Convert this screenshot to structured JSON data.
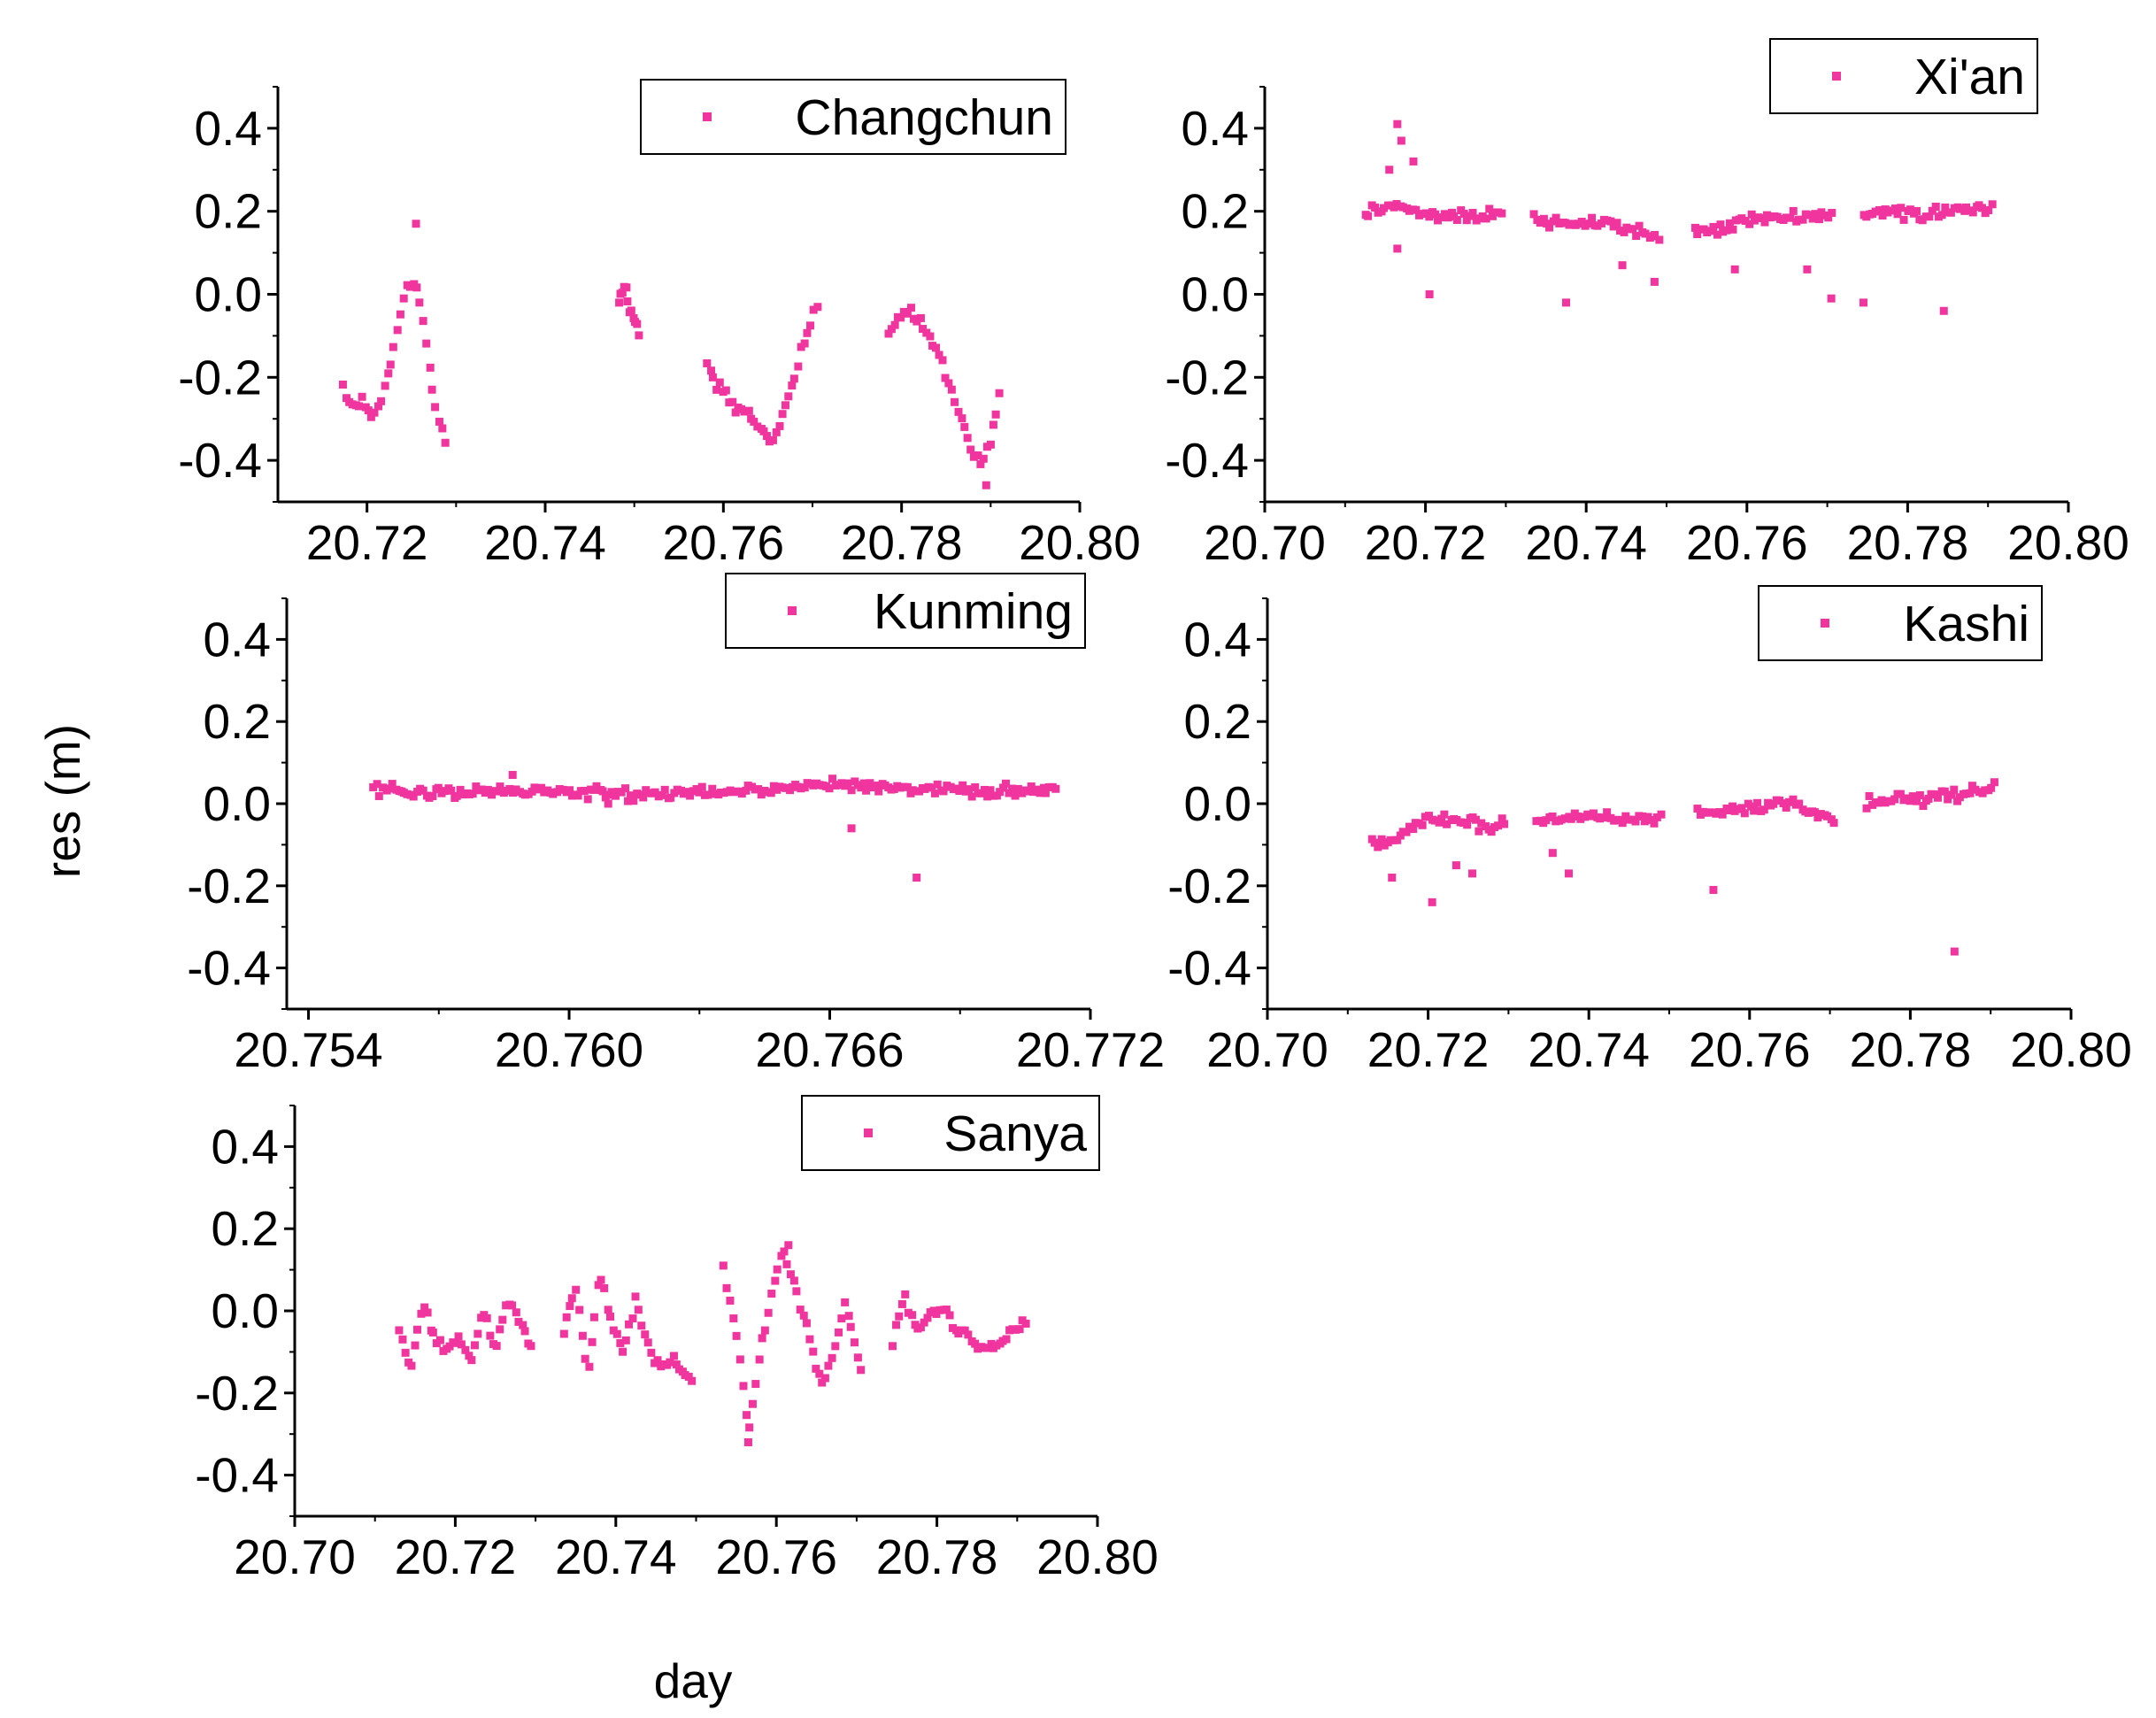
{
  "figure": {
    "ylabel": "res (m)",
    "xlabel": "day",
    "marker_color": "#f0359f"
  },
  "chart_data": [
    {
      "type": "scatter",
      "legend": "Changchun",
      "series": [
        {
          "name": "Changchun",
          "color": "#f0359f"
        }
      ],
      "xlim": [
        20.71,
        20.8
      ],
      "ylim": [
        -0.5,
        0.5
      ],
      "xticks": [
        "20.72",
        "20.74",
        "20.76",
        "20.78",
        "20.80"
      ],
      "yticks": [
        "0.4",
        "0.2",
        "0.0",
        "-0.2",
        "-0.4"
      ],
      "segments": [
        {
          "x": [
            20.7173,
            20.7185,
            20.7195,
            20.7205,
            20.7215,
            20.7225,
            20.7235,
            20.7245,
            20.7252,
            20.7258,
            20.7265,
            20.7272,
            20.728,
            20.7288
          ],
          "y": [
            -0.22,
            -0.28,
            -0.25,
            -0.3,
            -0.26,
            -0.18,
            -0.08,
            0.02,
            0.03,
            0.0,
            -0.1,
            -0.22,
            -0.3,
            -0.37
          ]
        },
        {
          "x": [
            20.7483,
            20.749,
            20.7497,
            20.7505
          ],
          "y": [
            -0.02,
            0.02,
            -0.05,
            -0.09
          ]
        },
        {
          "x": [
            20.7582,
            20.7595,
            20.761,
            20.7625,
            20.764,
            20.7655,
            20.7667,
            20.768,
            20.7692,
            20.7705
          ],
          "y": [
            -0.17,
            -0.22,
            -0.26,
            -0.28,
            -0.32,
            -0.36,
            -0.3,
            -0.2,
            -0.1,
            -0.02
          ]
        },
        {
          "x": [
            20.7785,
            20.7795,
            20.781,
            20.7825,
            20.784,
            20.7855,
            20.787,
            20.788,
            20.789,
            20.79,
            20.791
          ],
          "y": [
            -0.1,
            -0.06,
            -0.04,
            -0.08,
            -0.14,
            -0.22,
            -0.32,
            -0.38,
            -0.42,
            -0.35,
            -0.24
          ]
        }
      ],
      "outliers": {
        "x": [
          20.7255,
          20.7895
        ],
        "y": [
          0.17,
          -0.46
        ]
      }
    },
    {
      "type": "scatter",
      "legend": "Xi'an",
      "series": [
        {
          "name": "Xi'an",
          "color": "#f0359f"
        }
      ],
      "xlim": [
        20.7,
        20.8
      ],
      "ylim": [
        -0.5,
        0.5
      ],
      "xticks": [
        "20.70",
        "20.72",
        "20.74",
        "20.76",
        "20.78",
        "20.80"
      ],
      "yticks": [
        "0.4",
        "0.2",
        "0.0",
        "-0.2",
        "-0.4"
      ],
      "segments": [
        {
          "x": [
            20.7125,
            20.7145,
            20.7165,
            20.718,
            20.72,
            20.7225,
            20.725,
            20.7275,
            20.7295
          ],
          "y": [
            0.2,
            0.2,
            0.22,
            0.2,
            0.19,
            0.19,
            0.19,
            0.19,
            0.19
          ]
        },
        {
          "x": [
            20.7335,
            20.737,
            20.741,
            20.745,
            20.749
          ],
          "y": [
            0.18,
            0.17,
            0.17,
            0.16,
            0.14
          ]
        },
        {
          "x": [
            20.7535,
            20.757,
            20.761,
            20.765,
            20.7705
          ],
          "y": [
            0.15,
            0.16,
            0.18,
            0.19,
            0.19
          ]
        },
        {
          "x": [
            20.7745,
            20.778,
            20.782,
            20.786,
            20.7905
          ],
          "y": [
            0.19,
            0.2,
            0.19,
            0.2,
            0.21
          ]
        }
      ],
      "outliers": {
        "x": [
          20.7165,
          20.717,
          20.7155,
          20.7185,
          20.7165,
          20.7205,
          20.7375,
          20.7445,
          20.7485,
          20.7585,
          20.7675,
          20.7705,
          20.7745,
          20.7845
        ],
        "y": [
          0.41,
          0.37,
          0.3,
          0.32,
          0.11,
          0.0,
          -0.02,
          0.07,
          0.03,
          0.06,
          0.06,
          -0.01,
          -0.02,
          -0.04
        ]
      }
    },
    {
      "type": "scatter",
      "legend": "Kunming",
      "series": [
        {
          "name": "Kunming",
          "color": "#f0359f"
        }
      ],
      "xlim": [
        20.7535,
        20.772
      ],
      "ylim": [
        -0.5,
        0.5
      ],
      "xticks": [
        "20.754",
        "20.760",
        "20.766",
        "20.772"
      ],
      "yticks": [
        "0.4",
        "0.2",
        "0.0",
        "-0.2",
        "-0.4"
      ],
      "segments": [
        {
          "x": [
            20.7555,
            20.757,
            20.7585,
            20.76,
            20.7615,
            20.763,
            20.7645,
            20.766,
            20.7675,
            20.769,
            20.7712
          ],
          "y": [
            0.03,
            0.03,
            0.03,
            0.03,
            0.02,
            0.03,
            0.03,
            0.05,
            0.04,
            0.03,
            0.03
          ]
        }
      ],
      "outliers": {
        "x": [
          20.7587,
          20.7609,
          20.7665,
          20.768
        ],
        "y": [
          0.07,
          0.0,
          -0.06,
          -0.18
        ]
      }
    },
    {
      "type": "scatter",
      "legend": "Kashi",
      "series": [
        {
          "name": "Kashi",
          "color": "#f0359f"
        }
      ],
      "xlim": [
        20.7,
        20.8
      ],
      "ylim": [
        -0.5,
        0.5
      ],
      "xticks": [
        "20.70",
        "20.72",
        "20.74",
        "20.76",
        "20.78",
        "20.80"
      ],
      "yticks": [
        "0.4",
        "0.2",
        "0.0",
        "-0.2",
        "-0.4"
      ],
      "segments": [
        {
          "x": [
            20.713,
            20.716,
            20.72,
            20.724,
            20.728,
            20.7295
          ],
          "y": [
            -0.1,
            -0.09,
            -0.04,
            -0.04,
            -0.06,
            -0.05
          ]
        },
        {
          "x": [
            20.7335,
            20.737,
            20.741,
            20.745,
            20.749
          ],
          "y": [
            -0.04,
            -0.04,
            -0.03,
            -0.04,
            -0.04
          ]
        },
        {
          "x": [
            20.7535,
            20.757,
            20.761,
            20.765,
            20.7705
          ],
          "y": [
            -0.02,
            -0.02,
            -0.01,
            0.0,
            -0.04
          ]
        },
        {
          "x": [
            20.7745,
            20.778,
            20.782,
            20.786,
            20.7905
          ],
          "y": [
            0.0,
            0.01,
            0.01,
            0.02,
            0.04
          ]
        }
      ],
      "outliers": {
        "x": [
          20.7155,
          20.7205,
          20.7235,
          20.7255,
          20.7355,
          20.7375,
          20.7555,
          20.7855
        ],
        "y": [
          -0.18,
          -0.24,
          -0.15,
          -0.17,
          -0.12,
          -0.17,
          -0.21,
          -0.36
        ]
      }
    },
    {
      "type": "scatter",
      "legend": "Sanya",
      "series": [
        {
          "name": "Sanya",
          "color": "#f0359f"
        }
      ],
      "xlim": [
        20.7,
        20.8
      ],
      "ylim": [
        -0.5,
        0.5
      ],
      "xticks": [
        "20.70",
        "20.72",
        "20.74",
        "20.76",
        "20.78",
        "20.80"
      ],
      "yticks": [
        "0.4",
        "0.2",
        "0.0",
        "-0.2",
        "-0.4"
      ],
      "segments": [
        {
          "x": [
            20.713,
            20.7145,
            20.716,
            20.7175,
            20.719,
            20.7205,
            20.722,
            20.7235,
            20.725,
            20.7265,
            20.728,
            20.7295
          ],
          "y": [
            -0.05,
            -0.14,
            0.02,
            -0.08,
            -0.1,
            -0.06,
            -0.12,
            0.0,
            -0.1,
            0.03,
            -0.02,
            -0.09
          ]
        },
        {
          "x": [
            20.7335,
            20.735,
            20.7365,
            20.738,
            20.7395,
            20.741,
            20.7425,
            20.744,
            20.7455,
            20.747,
            20.7485,
            20.7495
          ],
          "y": [
            -0.05,
            0.06,
            -0.16,
            0.09,
            -0.02,
            -0.1,
            0.03,
            -0.08,
            -0.14,
            -0.11,
            -0.15,
            -0.17
          ]
        },
        {
          "x": [
            20.7535,
            20.755,
            20.7565,
            20.758,
            20.7595,
            20.761,
            20.7625,
            20.764,
            20.7655,
            20.767,
            20.7685,
            20.77,
            20.7705
          ],
          "y": [
            0.1,
            -0.05,
            -0.3,
            -0.1,
            0.05,
            0.15,
            0.05,
            -0.05,
            -0.18,
            -0.12,
            0.02,
            -0.1,
            -0.14
          ]
        },
        {
          "x": [
            20.7745,
            20.776,
            20.7775,
            20.779,
            20.7805,
            20.782,
            20.7835,
            20.785,
            20.7865,
            20.788,
            20.7895,
            20.791
          ],
          "y": [
            -0.08,
            0.04,
            -0.06,
            -0.01,
            0.01,
            -0.04,
            -0.05,
            -0.08,
            -0.09,
            -0.07,
            -0.05,
            -0.03
          ]
        }
      ],
      "outliers": {
        "x": [
          20.7565,
          20.7615
        ],
        "y": [
          -0.32,
          0.16
        ]
      }
    }
  ]
}
